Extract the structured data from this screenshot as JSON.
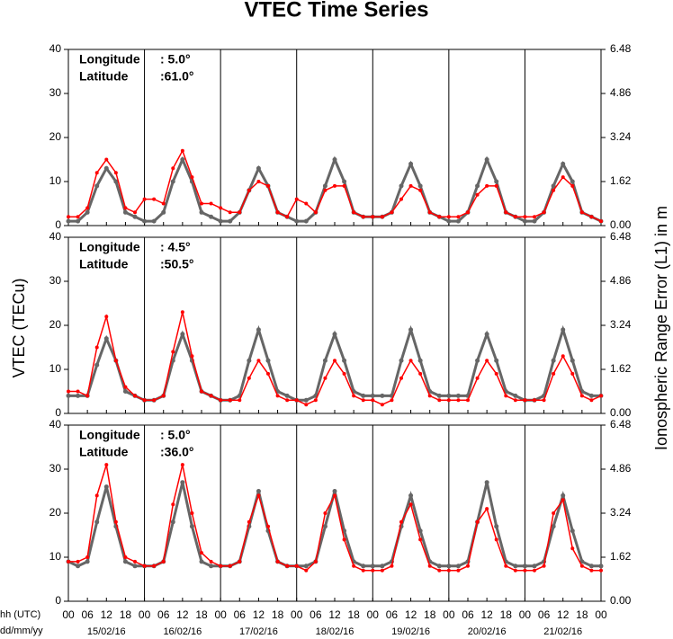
{
  "page": {
    "title": "VTEC Time Series",
    "y_label": "VTEC (TECu)",
    "y2_label": "Ionospheric Range Error (L1) in m",
    "x_label_hours": "hh (UTC)",
    "x_label_dates": "dd/mm/yy"
  },
  "x_axis": {
    "xlim": [
      0,
      168
    ],
    "xticks": [
      {
        "value": 0,
        "label": "00"
      },
      {
        "value": 6,
        "label": "06"
      },
      12,
      18,
      {
        "value": 24,
        "label": "00"
      },
      {
        "value": 30,
        "label": "06"
      },
      {
        "value": 36,
        "label": "12"
      },
      {
        "value": 42,
        "label": "18"
      },
      {
        "value": 48,
        "label": "00"
      },
      {
        "value": 54,
        "label": "06"
      },
      {
        "value": 60,
        "label": "12"
      },
      {
        "value": 66,
        "label": "18"
      },
      {
        "value": 72,
        "label": "00"
      },
      {
        "value": 78,
        "label": "06"
      },
      {
        "value": 84,
        "label": "12"
      },
      {
        "value": 90,
        "label": "18"
      },
      {
        "value": 96,
        "label": "00"
      },
      {
        "value": 102,
        "label": "06"
      },
      {
        "value": 108,
        "label": "12"
      },
      {
        "value": 114,
        "label": "18"
      },
      {
        "value": 120,
        "label": "00"
      },
      {
        "value": 126,
        "label": "06"
      },
      {
        "value": 132,
        "label": "12"
      },
      {
        "value": 138,
        "label": "18"
      },
      {
        "value": 144,
        "label": "00"
      },
      {
        "value": 150,
        "label": "06"
      },
      {
        "value": 156,
        "label": "12"
      },
      {
        "value": 162,
        "label": "18"
      },
      {
        "value": 168,
        "label": "00"
      }
    ],
    "dates": [
      {
        "value": 12,
        "label": "15/02/16"
      },
      {
        "value": 36,
        "label": "16/02/16"
      },
      {
        "value": 60,
        "label": "17/02/16"
      },
      {
        "value": 84,
        "label": "18/02/16"
      },
      {
        "value": 108,
        "label": "19/02/16"
      },
      {
        "value": 132,
        "label": "20/02/16"
      },
      {
        "value": 156,
        "label": "21/02/16"
      }
    ]
  },
  "chart_data": [
    {
      "type": "line",
      "annotations": [
        {
          "label": "Longitude",
          "value": ":   5.0°"
        },
        {
          "label": "Latitude",
          "value": ":61.0°"
        }
      ],
      "ylim": [
        0,
        40
      ],
      "yticks": [
        0,
        10,
        20,
        30,
        40
      ],
      "y2lim": [
        0,
        6.48
      ],
      "y2ticks": [
        {
          "value": 0,
          "label": "0.00"
        },
        1.62,
        3.24,
        4.86,
        6.48
      ],
      "x": [
        0,
        3,
        6,
        9,
        12,
        15,
        18,
        21,
        24,
        27,
        30,
        33,
        36,
        39,
        42,
        45,
        48,
        51,
        54,
        57,
        60,
        63,
        66,
        69,
        72,
        75,
        78,
        81,
        84,
        87,
        90,
        93,
        96,
        99,
        102,
        105,
        108,
        111,
        114,
        117,
        120,
        123,
        126,
        129,
        132,
        135,
        138,
        141,
        144,
        147,
        150,
        153,
        156,
        159,
        162,
        165,
        168
      ],
      "series": [
        {
          "color": "#666666",
          "values": [
            1,
            1,
            3,
            9,
            13,
            10,
            3,
            2,
            1,
            1,
            3,
            10,
            15,
            10,
            3,
            2,
            1,
            1,
            3,
            8,
            13,
            9,
            3,
            2,
            1,
            1,
            3,
            9,
            15,
            10,
            3,
            2,
            2,
            2,
            3,
            9,
            14,
            9,
            3,
            2,
            1,
            1,
            3,
            9,
            15,
            10,
            3,
            2,
            1,
            1,
            3,
            9,
            14,
            10,
            3,
            2,
            1
          ]
        },
        {
          "color": "#ff0000",
          "values": [
            2,
            2,
            4,
            12,
            15,
            12,
            4,
            3,
            6,
            6,
            5,
            13,
            17,
            11,
            5,
            5,
            4,
            3,
            3,
            8,
            10,
            9,
            3,
            2,
            6,
            5,
            3,
            8,
            9,
            9,
            3,
            2,
            2,
            2,
            3,
            6,
            9,
            8,
            3,
            2,
            2,
            2,
            3,
            7,
            9,
            9,
            3,
            2,
            2,
            2,
            3,
            8,
            11,
            9,
            3,
            2,
            1
          ]
        }
      ]
    },
    {
      "type": "line",
      "annotations": [
        {
          "label": "Longitude",
          "value": ":   4.5°"
        },
        {
          "label": "Latitude",
          "value": ":50.5°"
        }
      ],
      "ylim": [
        0,
        40
      ],
      "yticks": [
        0,
        10,
        20,
        30,
        40
      ],
      "y2lim": [
        0,
        6.48
      ],
      "y2ticks": [
        {
          "value": 0,
          "label": "0.00"
        },
        1.62,
        3.24,
        4.86,
        6.48
      ],
      "x": [
        0,
        3,
        6,
        9,
        12,
        15,
        18,
        21,
        24,
        27,
        30,
        33,
        36,
        39,
        42,
        45,
        48,
        51,
        54,
        57,
        60,
        63,
        66,
        69,
        72,
        75,
        78,
        81,
        84,
        87,
        90,
        93,
        96,
        99,
        102,
        105,
        108,
        111,
        114,
        117,
        120,
        123,
        126,
        129,
        132,
        135,
        138,
        141,
        144,
        147,
        150,
        153,
        156,
        159,
        162,
        165,
        168
      ],
      "series": [
        {
          "color": "#666666",
          "values": [
            4,
            4,
            4,
            11,
            17,
            12,
            5,
            4,
            3,
            3,
            4,
            12,
            18,
            12,
            5,
            4,
            3,
            3,
            4,
            12,
            19,
            12,
            5,
            4,
            3,
            3,
            4,
            12,
            18,
            12,
            5,
            4,
            4,
            4,
            4,
            12,
            19,
            12,
            5,
            4,
            4,
            4,
            4,
            12,
            18,
            12,
            5,
            4,
            3,
            3,
            4,
            12,
            19,
            12,
            5,
            4,
            4
          ]
        },
        {
          "color": "#ff0000",
          "values": [
            5,
            5,
            4,
            15,
            22,
            12,
            6,
            4,
            3,
            3,
            4,
            14,
            23,
            13,
            5,
            4,
            3,
            3,
            3,
            8,
            12,
            9,
            4,
            3,
            3,
            2,
            3,
            8,
            12,
            9,
            4,
            3,
            3,
            2,
            3,
            8,
            12,
            9,
            4,
            3,
            3,
            3,
            3,
            8,
            12,
            9,
            4,
            3,
            3,
            3,
            3,
            9,
            13,
            9,
            4,
            3,
            4
          ]
        }
      ]
    },
    {
      "type": "line",
      "annotations": [
        {
          "label": "Longitude",
          "value": ":   5.0°"
        },
        {
          "label": "Latitude",
          "value": ":36.0°"
        }
      ],
      "ylim": [
        0,
        40
      ],
      "yticks": [
        0,
        10,
        20,
        30,
        40
      ],
      "y2lim": [
        0,
        6.48
      ],
      "y2ticks": [
        {
          "value": 0,
          "label": "0.00"
        },
        1.62,
        3.24,
        4.86,
        6.48
      ],
      "x": [
        0,
        3,
        6,
        9,
        12,
        15,
        18,
        21,
        24,
        27,
        30,
        33,
        36,
        39,
        42,
        45,
        48,
        51,
        54,
        57,
        60,
        63,
        66,
        69,
        72,
        75,
        78,
        81,
        84,
        87,
        90,
        93,
        96,
        99,
        102,
        105,
        108,
        111,
        114,
        117,
        120,
        123,
        126,
        129,
        132,
        135,
        138,
        141,
        144,
        147,
        150,
        153,
        156,
        159,
        162,
        165,
        168
      ],
      "series": [
        {
          "color": "#666666",
          "values": [
            9,
            8,
            9,
            18,
            26,
            17,
            9,
            8,
            8,
            8,
            9,
            18,
            27,
            17,
            9,
            8,
            8,
            8,
            9,
            17,
            25,
            16,
            9,
            8,
            8,
            8,
            9,
            17,
            25,
            16,
            9,
            8,
            8,
            8,
            9,
            17,
            24,
            16,
            9,
            8,
            8,
            8,
            9,
            18,
            27,
            17,
            9,
            8,
            8,
            8,
            9,
            17,
            24,
            16,
            9,
            8,
            8
          ]
        },
        {
          "color": "#ff0000",
          "values": [
            9,
            9,
            10,
            24,
            31,
            18,
            10,
            9,
            8,
            8,
            9,
            22,
            31,
            20,
            11,
            9,
            8,
            8,
            9,
            18,
            24,
            17,
            9,
            8,
            8,
            7,
            9,
            20,
            24,
            14,
            8,
            7,
            7,
            7,
            8,
            18,
            22,
            14,
            8,
            7,
            7,
            7,
            8,
            18,
            21,
            14,
            8,
            7,
            7,
            7,
            8,
            20,
            23,
            12,
            8,
            7,
            7
          ]
        }
      ]
    }
  ]
}
